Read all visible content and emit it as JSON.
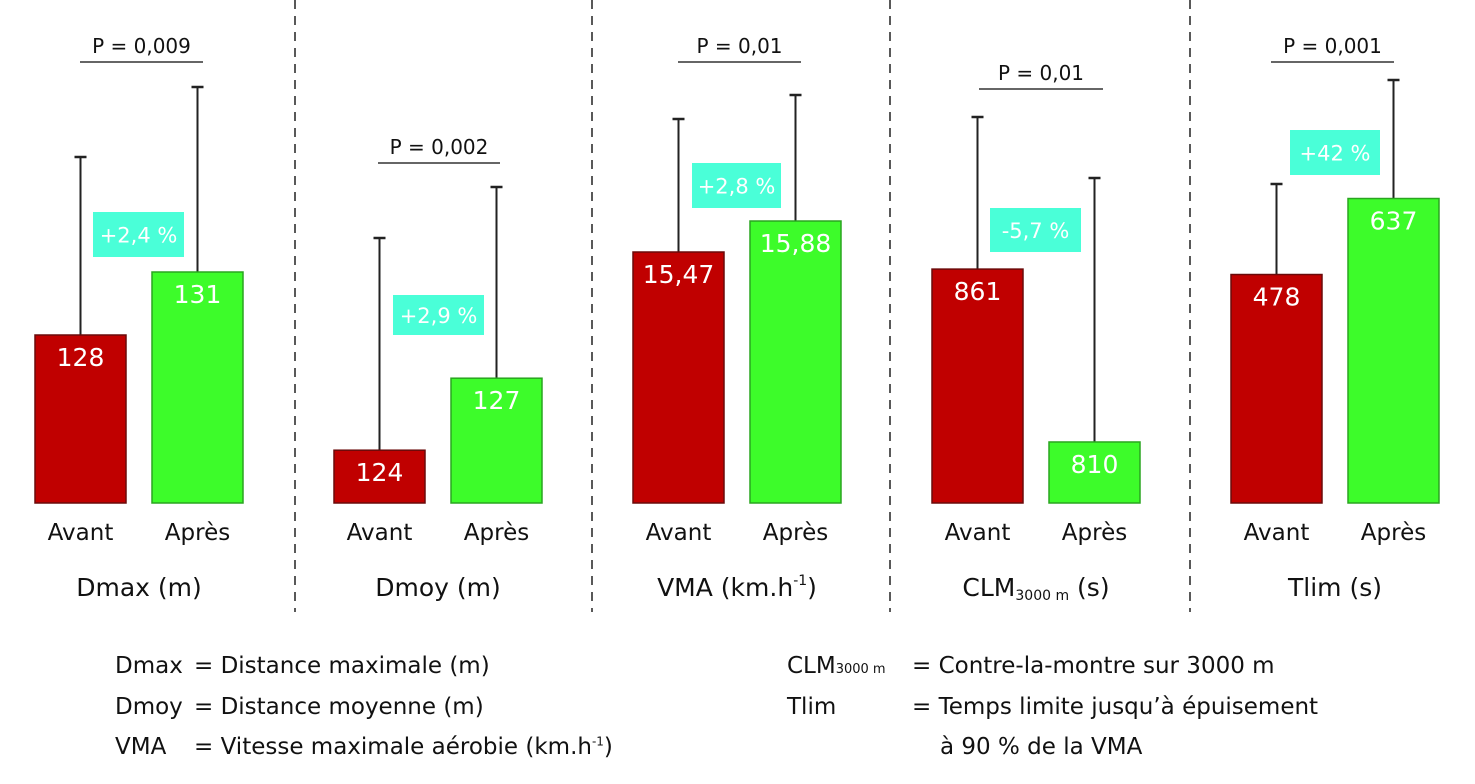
{
  "chart_data": {
    "type": "bar",
    "categories": [
      "Avant",
      "Après"
    ],
    "colors": {
      "Avant": "#c00000",
      "Après": "#3dfc2a",
      "percent_box": "#4affd8"
    },
    "panels": [
      {
        "title": "Dmax (m)",
        "values": [
          128,
          131
        ],
        "p_value": "P = 0,009",
        "change": "+2,4 %",
        "value_labels": [
          "128",
          "131"
        ]
      },
      {
        "title": "Dmoy (m)",
        "values": [
          124,
          127
        ],
        "p_value": "P = 0,002",
        "change": "+2,9 %",
        "value_labels": [
          "124",
          "127"
        ]
      },
      {
        "title": "VMA (km.h",
        "title_sup": "-1",
        "title_end": ")",
        "values": [
          15.47,
          15.88
        ],
        "p_value": "P = 0,01",
        "change": "+2,8 %",
        "value_labels": [
          "15,47",
          "15,88"
        ]
      },
      {
        "title": "CLM",
        "title_sub": "3000 m",
        "title_end": " (s)",
        "values": [
          861,
          810
        ],
        "p_value": "P = 0,01",
        "change": "-5,7 %",
        "value_labels": [
          "861",
          "810"
        ]
      },
      {
        "title": "Tlim (s)",
        "values": [
          478,
          637
        ],
        "p_value": "P = 0,001",
        "change": "+42 %",
        "value_labels": [
          "478",
          "637"
        ]
      }
    ],
    "error_bars": true,
    "grid": false
  },
  "legend": {
    "left": [
      {
        "abbr": "Dmax",
        "def": "= Distance maximale (m)"
      },
      {
        "abbr": "Dmoy",
        "def": "= Distance moyenne (m)"
      },
      {
        "abbr": "VMA",
        "def": "= Vitesse maximale aérobie (km.h",
        "sup": "-1",
        "end": ")"
      }
    ],
    "right": [
      {
        "abbr": "CLM",
        "sub": "3000 m",
        "def": "= Contre-la-montre sur 3000 m"
      },
      {
        "abbr": "Tlim",
        "def": "= Temps limite jusqu’à épuisement"
      },
      {
        "abbr": "",
        "def": "à 90 % de la VMA"
      }
    ]
  }
}
